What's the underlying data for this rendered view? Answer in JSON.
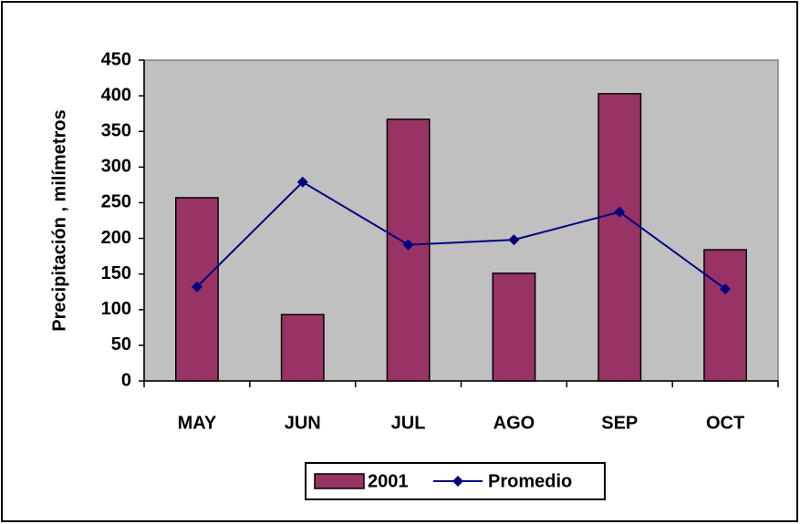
{
  "chart_data": {
    "type": "bar",
    "y_label": "Precipitación , milímetros",
    "categories": [
      "MAY",
      "JUN",
      "JUL",
      "AGO",
      "SEP",
      "OCT"
    ],
    "series": [
      {
        "name": "2001",
        "type": "bar",
        "color": "#993366",
        "values": [
          257,
          93,
          367,
          151,
          403,
          184
        ]
      },
      {
        "name": "Promedio",
        "type": "line",
        "color": "#000080",
        "values": [
          132,
          279,
          191,
          198,
          237,
          129
        ]
      }
    ],
    "ylim": [
      0,
      450
    ],
    "yticks": [
      0,
      50,
      100,
      150,
      200,
      250,
      300,
      350,
      400,
      450
    ],
    "plot_background": "#c0c0c0"
  }
}
